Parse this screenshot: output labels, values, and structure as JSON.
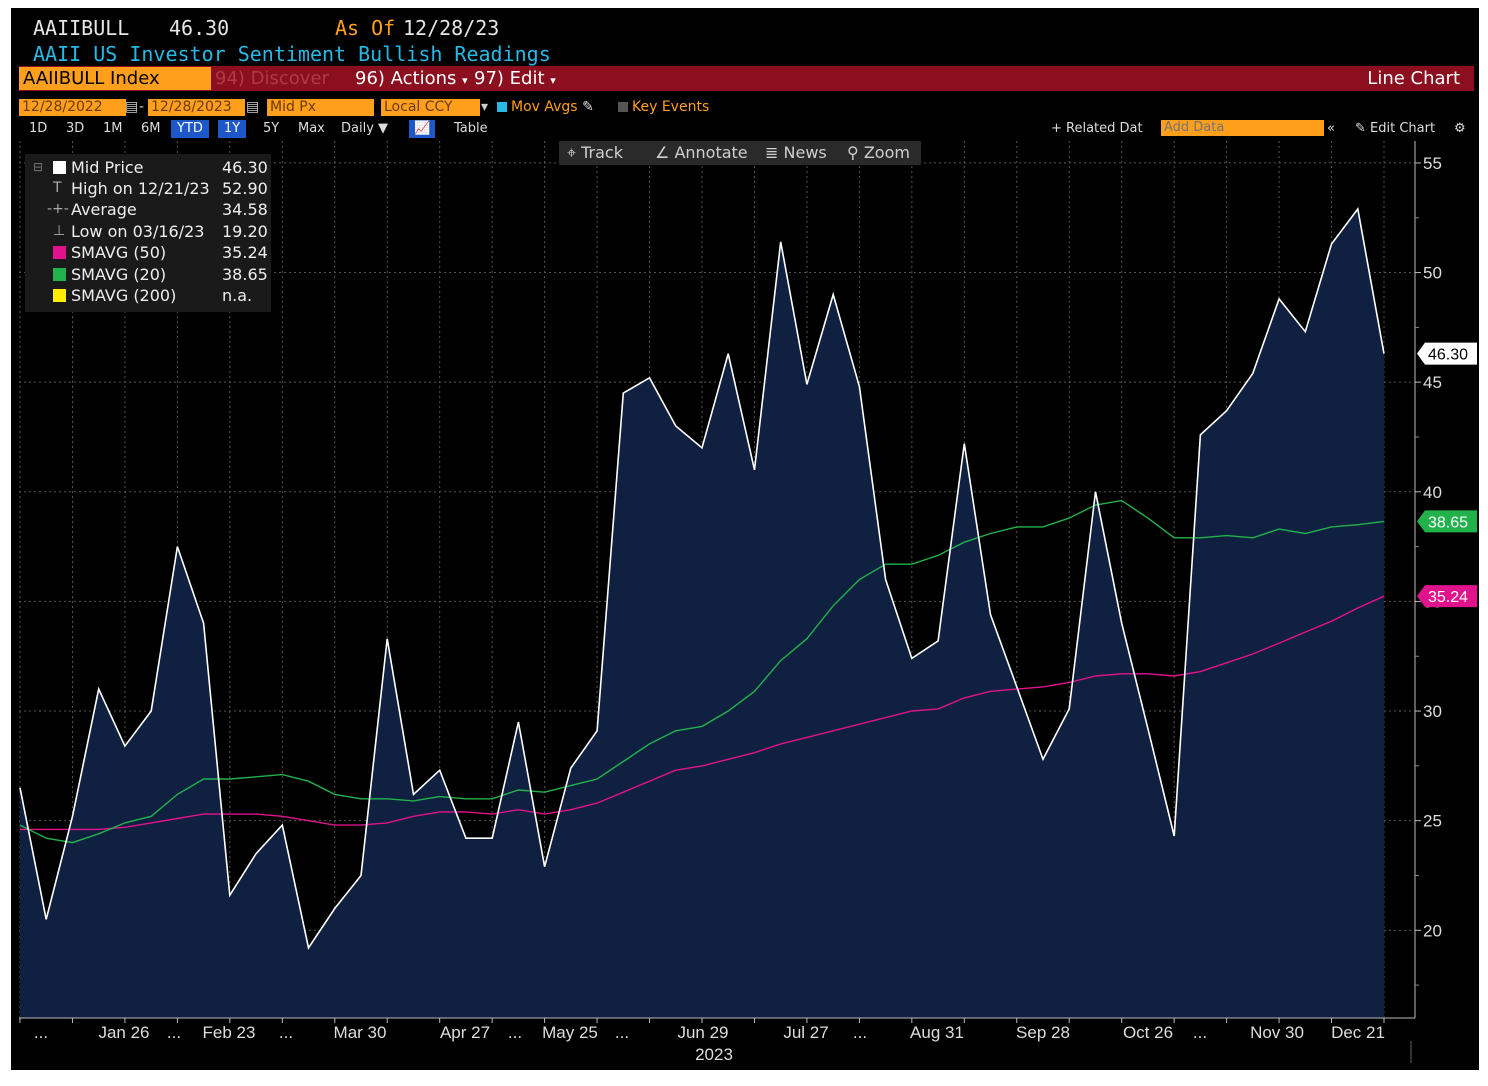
{
  "header": {
    "ticker": "AAIIBULL",
    "last": "46.30",
    "asof_label": "As Of",
    "asof_date": "12/28/23",
    "subtitle": "AAII US Investor Sentiment Bullish Readings"
  },
  "toolbar": {
    "security": "AAIIBULL Index",
    "discover": "94) Discover",
    "actions": "96) Actions",
    "edit": "97) Edit",
    "chart_type": "Line Chart"
  },
  "controls": {
    "start_date": "12/28/2022",
    "end_date": "12/28/2023",
    "price_field": "Mid Px",
    "currency": "Local CCY",
    "mov_avgs": "Mov Avgs",
    "key_events": "Key Events",
    "periods": [
      "1D",
      "3D",
      "1M",
      "6M",
      "YTD",
      "1Y",
      "5Y",
      "Max"
    ],
    "active_periods": [
      "YTD",
      "1Y"
    ],
    "frequency": "Daily",
    "table": "Table",
    "related": "+ Related Dat",
    "add_data_placeholder": "Add Data",
    "edit_chart": "Edit Chart",
    "track": "Track",
    "annotate": "Annotate",
    "news": "News",
    "zoom": "Zoom"
  },
  "legend": [
    {
      "label": "Mid Price",
      "value": "46.30",
      "color": "#ffffff"
    },
    {
      "label": "High on 12/21/23",
      "value": "52.90",
      "glyph": "T"
    },
    {
      "label": "Average",
      "value": "34.58",
      "glyph": "-+-"
    },
    {
      "label": "Low on 03/16/23",
      "value": "19.20",
      "glyph": "⊥"
    },
    {
      "label": "SMAVG (50)",
      "value": "35.24",
      "color": "#e0138c"
    },
    {
      "label": "SMAVG (20)",
      "value": "38.65",
      "color": "#22b24c"
    },
    {
      "label": "SMAVG (200)",
      "value": "n.a.",
      "color": "#ffee00"
    }
  ],
  "chart_data": {
    "type": "area",
    "xlabel": "2023",
    "x_tick_labels": [
      "...",
      "Jan 26",
      "...",
      "Feb 23",
      "...",
      "Mar 30",
      "Apr 27",
      "...",
      "May 25",
      "...",
      "Jun 29",
      "Jul 27",
      "...",
      "Aug 31",
      "Sep 28",
      "Oct 26",
      "...",
      "Nov 30",
      "Dec 21"
    ],
    "y_ticks": [
      20,
      25,
      30,
      35,
      40,
      45,
      50,
      55
    ],
    "ylim": [
      16,
      56
    ],
    "grid": true,
    "colors": {
      "price": "#ffffff",
      "fill": "#0f2040",
      "sma50": "#e0138c",
      "sma20": "#22b24c"
    },
    "series": [
      {
        "name": "Mid Price",
        "values": [
          26.5,
          20.5,
          25.2,
          31.0,
          28.4,
          30.0,
          37.5,
          34.0,
          21.6,
          23.5,
          24.8,
          19.2,
          21.0,
          22.5,
          33.3,
          26.2,
          27.3,
          24.2,
          24.2,
          29.5,
          22.9,
          27.4,
          29.1,
          44.5,
          45.2,
          43.0,
          42.0,
          46.3,
          41.0,
          51.4,
          44.9,
          49.0,
          44.8,
          36.0,
          32.4,
          33.2,
          42.2,
          34.4,
          31.1,
          27.8,
          30.1,
          40.0,
          34.0,
          29.2,
          24.3,
          42.6,
          43.7,
          45.4,
          48.8,
          47.3,
          51.3,
          52.9,
          46.3
        ]
      },
      {
        "name": "SMAVG (20)",
        "values": [
          24.8,
          24.2,
          24.0,
          24.4,
          24.9,
          25.2,
          26.2,
          26.9,
          26.9,
          27.0,
          27.1,
          26.8,
          26.2,
          26.0,
          26.0,
          25.9,
          26.1,
          26.0,
          26.0,
          26.4,
          26.3,
          26.6,
          26.9,
          27.7,
          28.5,
          29.1,
          29.3,
          30.0,
          30.9,
          32.3,
          33.3,
          34.8,
          36.0,
          36.7,
          36.7,
          37.1,
          37.7,
          38.1,
          38.4,
          38.4,
          38.8,
          39.4,
          39.6,
          38.8,
          37.9,
          37.9,
          38.0,
          37.9,
          38.3,
          38.1,
          38.4,
          38.5,
          38.65
        ]
      },
      {
        "name": "SMAVG (50)",
        "values": [
          24.6,
          24.6,
          24.6,
          24.6,
          24.7,
          24.9,
          25.1,
          25.3,
          25.3,
          25.3,
          25.2,
          25.0,
          24.8,
          24.8,
          24.9,
          25.2,
          25.4,
          25.4,
          25.3,
          25.5,
          25.3,
          25.5,
          25.8,
          26.3,
          26.8,
          27.3,
          27.5,
          27.8,
          28.1,
          28.5,
          28.8,
          29.1,
          29.4,
          29.7,
          30.0,
          30.1,
          30.6,
          30.9,
          31.0,
          31.1,
          31.3,
          31.6,
          31.7,
          31.7,
          31.6,
          31.8,
          32.2,
          32.6,
          33.1,
          33.6,
          34.1,
          34.7,
          35.24
        ]
      }
    ],
    "last_value_labels": [
      "46.30",
      "38.65",
      "35.24"
    ]
  }
}
